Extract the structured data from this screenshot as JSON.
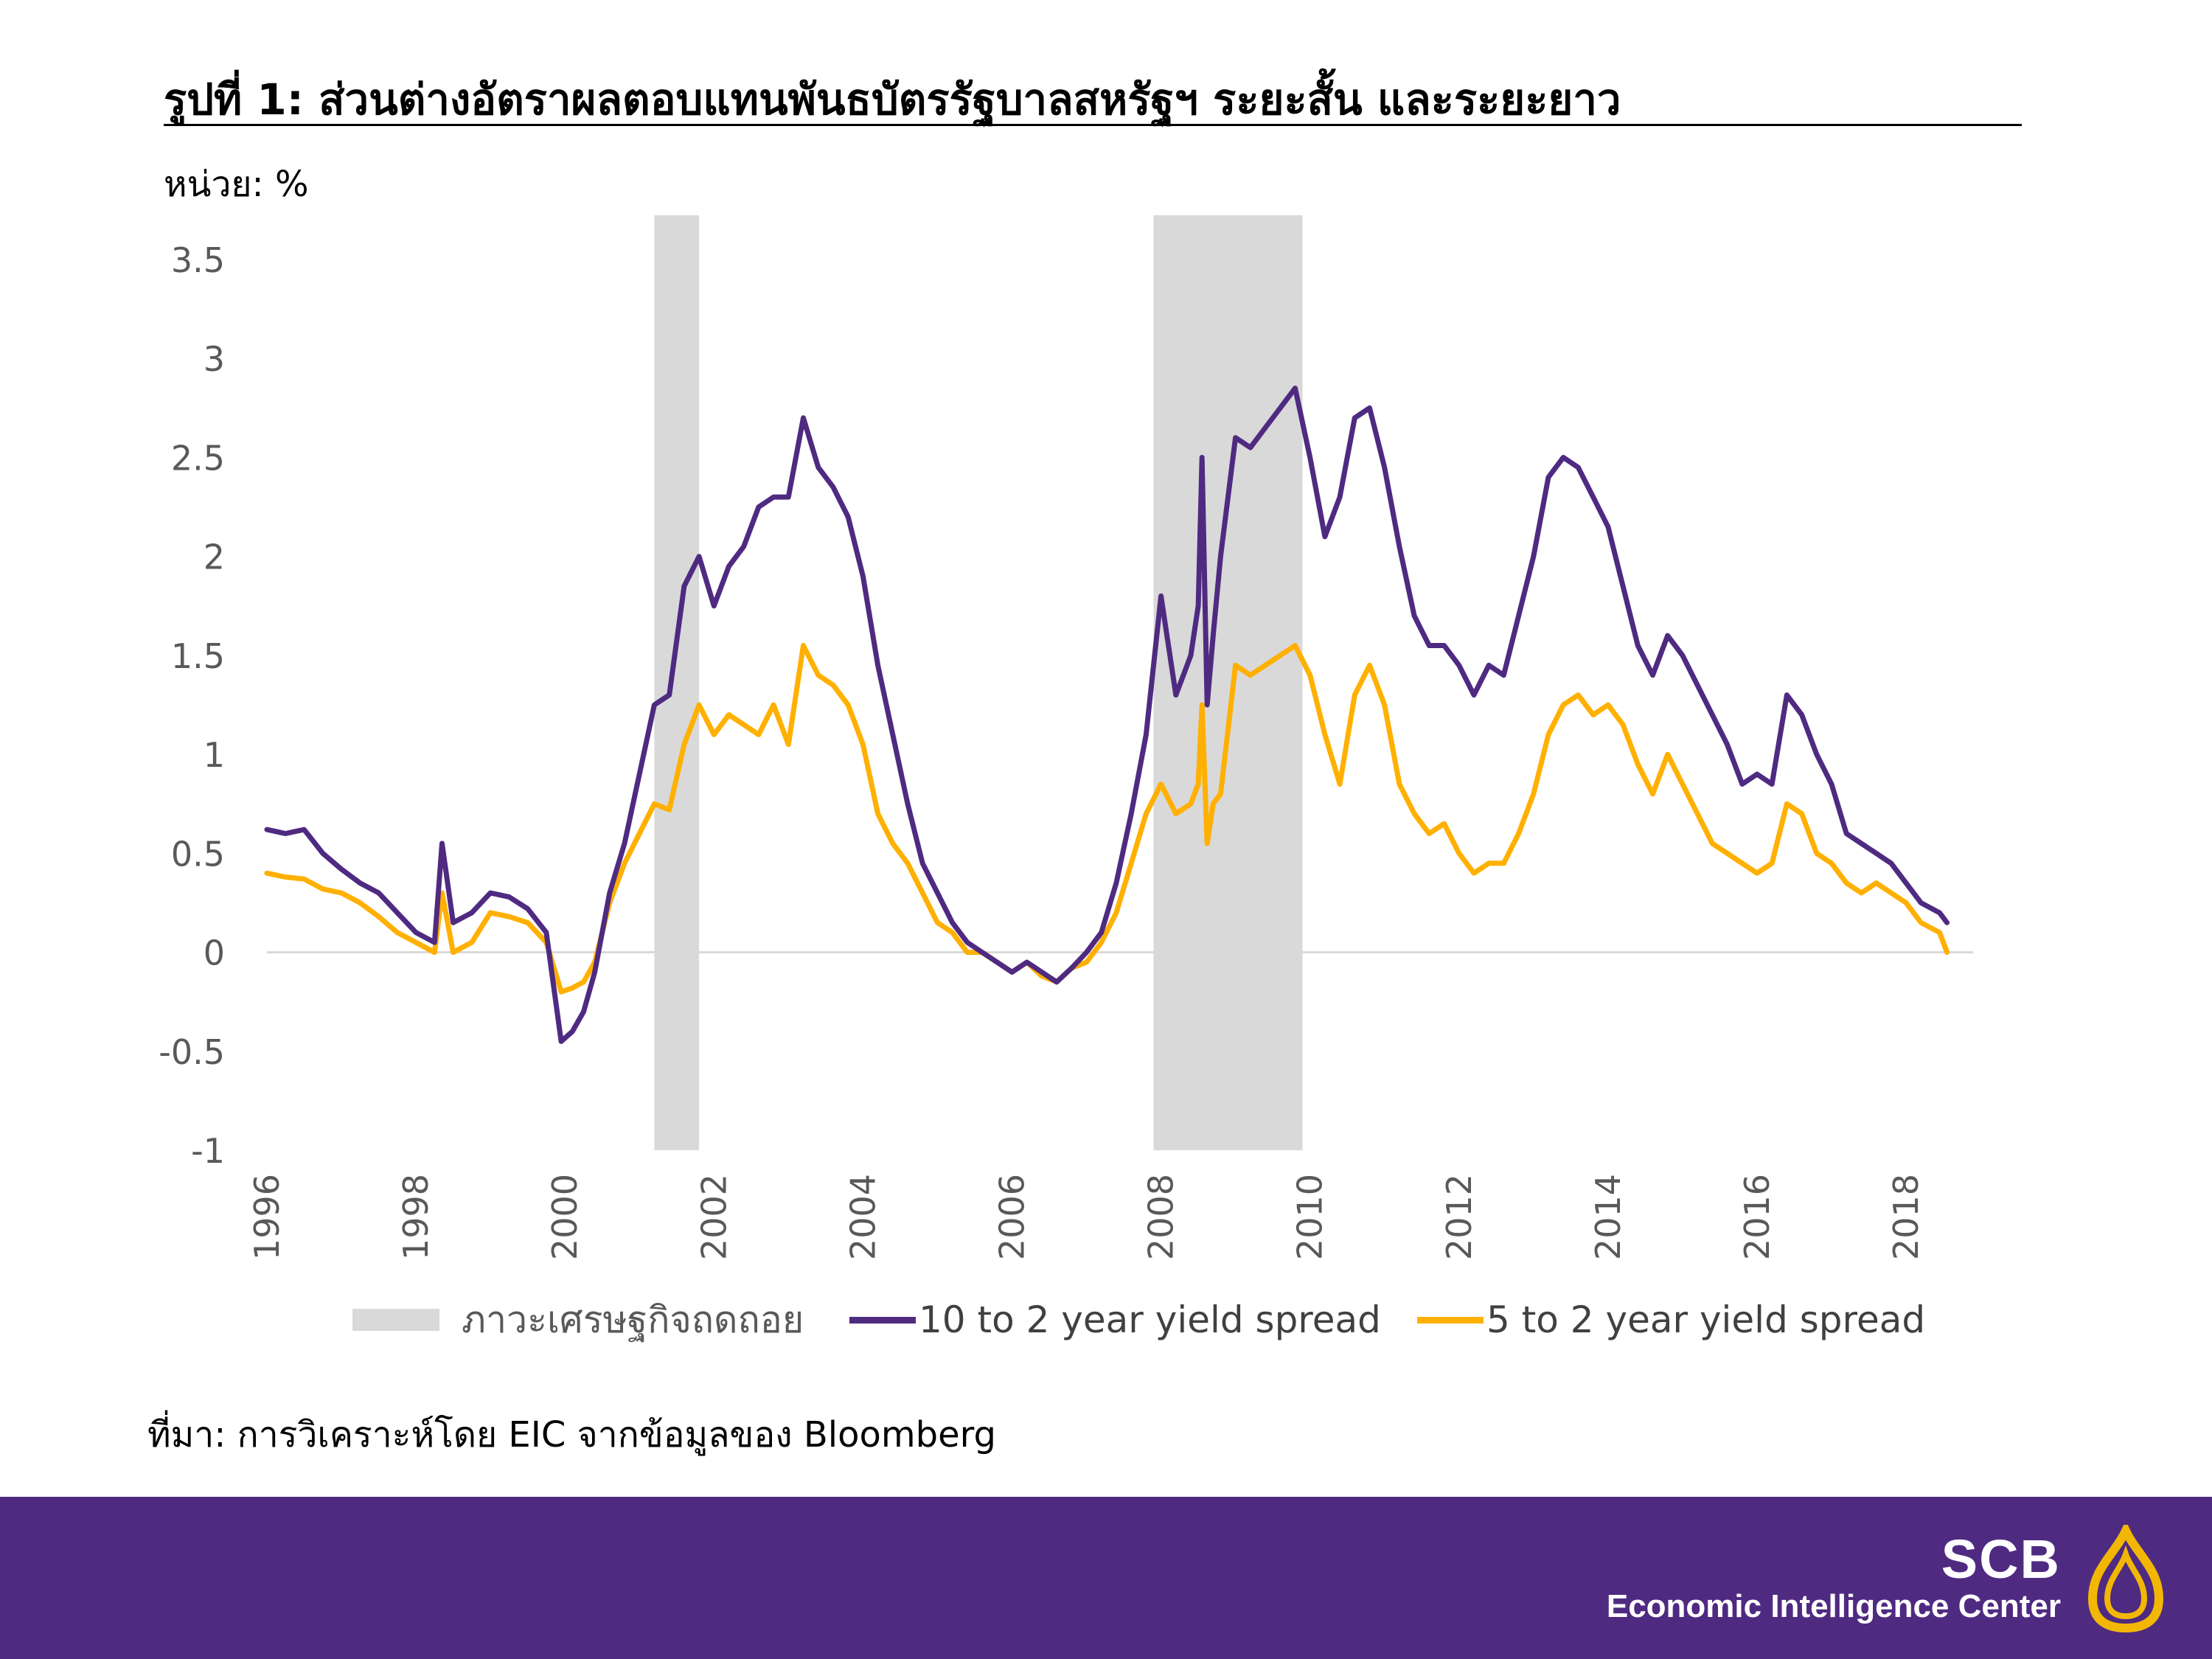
{
  "header": {
    "title": "รูปที่ 1: ส่วนต่างอัตราผลตอบแทนพันธบัตรรัฐบาลสหรัฐฯ ระยะสั้น และระยะยาว",
    "unit": "หน่วย: %"
  },
  "source": "ที่มา: การวิเคราะห์โดย EIC จากข้อมูลของ Bloomberg",
  "footer": {
    "brand": "SCB",
    "subtitle": "Economic Intelligence Center",
    "logo_icon": "scb-house-icon"
  },
  "colors": {
    "series_10_2": "#4f2a81",
    "series_5_2": "#ffb000",
    "recession": "#d9d9d9",
    "footer_bg": "#4f2a81",
    "logo": "#f2b705"
  },
  "legend": {
    "recession": "ภาวะเศรษฐกิจถดถอย",
    "series_10_2": "10 to 2 year yield spread",
    "series_5_2": "5 to 2 year yield spread"
  },
  "chart_data": {
    "type": "line",
    "title": "รูปที่ 1: ส่วนต่างอัตราผลตอบแทนพันธบัตรรัฐบาลสหรัฐฯ ระยะสั้น และระยะยาว",
    "ylabel": "หน่วย: %",
    "xlabel": "",
    "ylim": [
      -1,
      3.5
    ],
    "yticks": [
      "3.5",
      "3",
      "2.5",
      "2",
      "1.5",
      "1",
      "0.5",
      "0",
      "-0.5",
      "-1"
    ],
    "xticks": [
      "1996",
      "1998",
      "2000",
      "2002",
      "2004",
      "2006",
      "2008",
      "2010",
      "2012",
      "2014",
      "2016",
      "2018"
    ],
    "xlim": [
      1996,
      2018.9
    ],
    "grid": false,
    "zero_line": true,
    "legend_position": "bottom",
    "recessions": [
      {
        "start": 2001.2,
        "end": 2001.8
      },
      {
        "start": 2007.9,
        "end": 2009.9
      }
    ],
    "series": [
      {
        "name": "10 to 2 year yield spread",
        "x": [
          1996.0,
          1996.25,
          1996.5,
          1996.75,
          1997.0,
          1997.25,
          1997.5,
          1997.75,
          1998.0,
          1998.25,
          1998.35,
          1998.5,
          1998.75,
          1999.0,
          1999.25,
          1999.5,
          1999.75,
          1999.95,
          2000.1,
          2000.25,
          2000.4,
          2000.6,
          2000.8,
          2001.0,
          2001.2,
          2001.4,
          2001.6,
          2001.8,
          2002.0,
          2002.2,
          2002.4,
          2002.6,
          2002.8,
          2003.0,
          2003.2,
          2003.4,
          2003.6,
          2003.8,
          2004.0,
          2004.2,
          2004.4,
          2004.6,
          2004.8,
          2005.0,
          2005.2,
          2005.4,
          2005.6,
          2005.8,
          2006.0,
          2006.2,
          2006.4,
          2006.6,
          2006.8,
          2007.0,
          2007.2,
          2007.4,
          2007.6,
          2007.8,
          2008.0,
          2008.2,
          2008.4,
          2008.5,
          2008.55,
          2008.62,
          2008.7,
          2008.8,
          2009.0,
          2009.2,
          2009.4,
          2009.6,
          2009.8,
          2010.0,
          2010.2,
          2010.4,
          2010.6,
          2010.8,
          2011.0,
          2011.2,
          2011.4,
          2011.6,
          2011.8,
          2012.0,
          2012.2,
          2012.4,
          2012.6,
          2012.8,
          2013.0,
          2013.2,
          2013.4,
          2013.6,
          2013.8,
          2014.0,
          2014.2,
          2014.4,
          2014.6,
          2014.8,
          2015.0,
          2015.2,
          2015.4,
          2015.6,
          2015.8,
          2016.0,
          2016.2,
          2016.4,
          2016.6,
          2016.8,
          2017.0,
          2017.2,
          2017.4,
          2017.6,
          2017.8,
          2018.0,
          2018.2,
          2018.45,
          2018.55
        ],
        "values": [
          0.62,
          0.6,
          0.62,
          0.5,
          0.42,
          0.35,
          0.3,
          0.2,
          0.1,
          0.05,
          0.55,
          0.15,
          0.2,
          0.3,
          0.28,
          0.22,
          0.1,
          -0.45,
          -0.4,
          -0.3,
          -0.1,
          0.3,
          0.55,
          0.9,
          1.25,
          1.3,
          1.85,
          2.0,
          1.75,
          1.95,
          2.05,
          2.25,
          2.3,
          2.3,
          2.7,
          2.45,
          2.35,
          2.2,
          1.9,
          1.45,
          1.1,
          0.75,
          0.45,
          0.3,
          0.15,
          0.05,
          0.0,
          -0.05,
          -0.1,
          -0.05,
          -0.1,
          -0.15,
          -0.08,
          0.0,
          0.1,
          0.35,
          0.7,
          1.1,
          1.8,
          1.3,
          1.5,
          1.75,
          2.5,
          1.25,
          1.6,
          2.0,
          2.6,
          2.55,
          2.65,
          2.75,
          2.85,
          2.5,
          2.1,
          2.3,
          2.7,
          2.75,
          2.45,
          2.05,
          1.7,
          1.55,
          1.55,
          1.45,
          1.3,
          1.45,
          1.4,
          1.7,
          2.0,
          2.4,
          2.5,
          2.45,
          2.3,
          2.15,
          1.85,
          1.55,
          1.4,
          1.6,
          1.5,
          1.35,
          1.2,
          1.05,
          0.85,
          0.9,
          0.85,
          1.3,
          1.2,
          1.0,
          0.85,
          0.6,
          0.55,
          0.5,
          0.45,
          0.35,
          0.25,
          0.2,
          0.15
        ]
      },
      {
        "name": "5 to 2 year yield spread",
        "x": [
          1996.0,
          1996.25,
          1996.5,
          1996.75,
          1997.0,
          1997.25,
          1997.5,
          1997.75,
          1998.0,
          1998.25,
          1998.35,
          1998.5,
          1998.75,
          1999.0,
          1999.25,
          1999.5,
          1999.75,
          1999.95,
          2000.1,
          2000.25,
          2000.4,
          2000.6,
          2000.8,
          2001.0,
          2001.2,
          2001.4,
          2001.6,
          2001.8,
          2002.0,
          2002.2,
          2002.4,
          2002.6,
          2002.8,
          2003.0,
          2003.2,
          2003.4,
          2003.6,
          2003.8,
          2004.0,
          2004.2,
          2004.4,
          2004.6,
          2004.8,
          2005.0,
          2005.2,
          2005.4,
          2005.6,
          2005.8,
          2006.0,
          2006.2,
          2006.4,
          2006.6,
          2006.8,
          2007.0,
          2007.2,
          2007.4,
          2007.6,
          2007.8,
          2008.0,
          2008.2,
          2008.4,
          2008.5,
          2008.55,
          2008.62,
          2008.7,
          2008.8,
          2009.0,
          2009.2,
          2009.4,
          2009.6,
          2009.8,
          2010.0,
          2010.2,
          2010.4,
          2010.6,
          2010.8,
          2011.0,
          2011.2,
          2011.4,
          2011.6,
          2011.8,
          2012.0,
          2012.2,
          2012.4,
          2012.6,
          2012.8,
          2013.0,
          2013.2,
          2013.4,
          2013.6,
          2013.8,
          2014.0,
          2014.2,
          2014.4,
          2014.6,
          2014.8,
          2015.0,
          2015.2,
          2015.4,
          2015.6,
          2015.8,
          2016.0,
          2016.2,
          2016.4,
          2016.6,
          2016.8,
          2017.0,
          2017.2,
          2017.4,
          2017.6,
          2017.8,
          2018.0,
          2018.2,
          2018.45,
          2018.55
        ],
        "values": [
          0.4,
          0.38,
          0.37,
          0.32,
          0.3,
          0.25,
          0.18,
          0.1,
          0.05,
          0.0,
          0.3,
          0.0,
          0.05,
          0.2,
          0.18,
          0.15,
          0.05,
          -0.2,
          -0.18,
          -0.15,
          -0.05,
          0.25,
          0.45,
          0.6,
          0.75,
          0.72,
          1.05,
          1.25,
          1.1,
          1.2,
          1.15,
          1.1,
          1.25,
          1.05,
          1.55,
          1.4,
          1.35,
          1.25,
          1.05,
          0.7,
          0.55,
          0.45,
          0.3,
          0.15,
          0.1,
          0.0,
          0.0,
          -0.05,
          -0.1,
          -0.05,
          -0.12,
          -0.15,
          -0.08,
          -0.05,
          0.05,
          0.2,
          0.45,
          0.7,
          0.85,
          0.7,
          0.75,
          0.85,
          1.25,
          0.55,
          0.75,
          0.8,
          1.45,
          1.4,
          1.45,
          1.5,
          1.55,
          1.4,
          1.1,
          0.85,
          1.3,
          1.45,
          1.25,
          0.85,
          0.7,
          0.6,
          0.65,
          0.5,
          0.4,
          0.45,
          0.45,
          0.6,
          0.8,
          1.1,
          1.25,
          1.3,
          1.2,
          1.25,
          1.15,
          0.95,
          0.8,
          1.0,
          0.85,
          0.7,
          0.55,
          0.5,
          0.45,
          0.4,
          0.45,
          0.75,
          0.7,
          0.5,
          0.45,
          0.35,
          0.3,
          0.35,
          0.3,
          0.25,
          0.15,
          0.1,
          0.0
        ]
      }
    ]
  }
}
